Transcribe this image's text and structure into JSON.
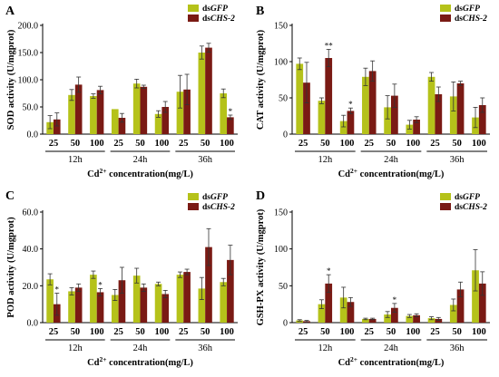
{
  "figure": {
    "x_unit_prefix": "Cd",
    "x_unit_sup": "2+",
    "x_unit_suffix": " concentration(mg/L)",
    "groups": [
      "12h",
      "24h",
      "36h"
    ]
  },
  "colors": {
    "dsGFP": "#b5c21a",
    "dsCHS2": "#7a1a14"
  },
  "chart_data": [
    {
      "panel": "A",
      "type": "bar",
      "ylabel": "SOD activity (U/mgprot)",
      "ylim": [
        0,
        200
      ],
      "ytick_step": 50,
      "ytick_decimals": 1,
      "categories": [
        "25",
        "50",
        "100",
        "25",
        "50",
        "100",
        "25",
        "50",
        "100"
      ],
      "groups": [
        "12h",
        "24h",
        "36h"
      ],
      "series": [
        {
          "name_prefix": "ds",
          "name_italic": "GFP",
          "values": [
            22,
            72,
            70,
            46,
            93,
            37,
            78,
            150,
            75
          ],
          "errors": [
            12,
            10,
            4,
            0,
            8,
            6,
            30,
            12,
            8
          ]
        },
        {
          "name_prefix": "ds",
          "name_italic": "CHS-2",
          "values": [
            27,
            91,
            81,
            30,
            87,
            50,
            82,
            159,
            31
          ],
          "errors": [
            12,
            14,
            7,
            8,
            3,
            10,
            28,
            8,
            4
          ]
        }
      ],
      "sig_marks": [
        {
          "series": 1,
          "index": 8,
          "text": "*"
        }
      ]
    },
    {
      "panel": "B",
      "type": "bar",
      "ylabel": "CAT activity (U/mgprot)",
      "ylim": [
        0,
        150
      ],
      "ytick_step": 50,
      "ytick_decimals": 0,
      "categories": [
        "25",
        "50",
        "100",
        "25",
        "50",
        "100",
        "25",
        "50",
        "100"
      ],
      "groups": [
        "12h",
        "24h",
        "36h"
      ],
      "series": [
        {
          "name_prefix": "ds",
          "name_italic": "GFP",
          "values": [
            97,
            46,
            18,
            79,
            37,
            13,
            79,
            52,
            23
          ],
          "errors": [
            8,
            4,
            8,
            12,
            16,
            6,
            6,
            20,
            14
          ]
        },
        {
          "name_prefix": "ds",
          "name_italic": "CHS-2",
          "values": [
            71,
            105,
            32,
            87,
            53,
            20,
            55,
            70,
            40
          ],
          "errors": [
            28,
            12,
            4,
            14,
            16,
            4,
            10,
            3,
            10
          ]
        }
      ],
      "sig_marks": [
        {
          "series": 1,
          "index": 1,
          "text": "**"
        },
        {
          "series": 1,
          "index": 2,
          "text": "*"
        }
      ]
    },
    {
      "panel": "C",
      "type": "bar",
      "ylabel": "POD activity (U/mgprot)",
      "ylim": [
        0,
        60
      ],
      "ytick_step": 20,
      "ytick_decimals": 1,
      "categories": [
        "25",
        "50",
        "100",
        "25",
        "50",
        "100",
        "25",
        "50",
        "100"
      ],
      "groups": [
        "12h",
        "24h",
        "36h"
      ],
      "series": [
        {
          "name_prefix": "ds",
          "name_italic": "GFP",
          "values": [
            23.5,
            17,
            26,
            15,
            25.5,
            21,
            26,
            18.5,
            22
          ],
          "errors": [
            3,
            2,
            2,
            3,
            4,
            1,
            1.5,
            6,
            2
          ]
        },
        {
          "name_prefix": "ds",
          "name_italic": "CHS-2",
          "values": [
            10,
            19,
            16.5,
            23,
            19,
            15.5,
            27.5,
            41,
            34
          ],
          "errors": [
            6,
            2,
            2,
            7,
            2,
            2,
            1.5,
            10,
            8
          ]
        }
      ],
      "sig_marks": [
        {
          "series": 1,
          "index": 0,
          "text": "*"
        },
        {
          "series": 1,
          "index": 2,
          "text": "*"
        }
      ]
    },
    {
      "panel": "D",
      "type": "bar",
      "ylabel": "GSH-PX activity (U/mgprot)",
      "ylim": [
        0,
        150
      ],
      "ytick_step": 50,
      "ytick_decimals": 0,
      "categories": [
        "25",
        "50",
        "100",
        "25",
        "50",
        "100",
        "25",
        "50",
        "100"
      ],
      "groups": [
        "12h",
        "24h",
        "36h"
      ],
      "series": [
        {
          "name_prefix": "ds",
          "name_italic": "GFP",
          "values": [
            3,
            25,
            34,
            5,
            11,
            9,
            6,
            24,
            71
          ],
          "errors": [
            1,
            6,
            14,
            1,
            4,
            2,
            2,
            8,
            28
          ]
        },
        {
          "name_prefix": "ds",
          "name_italic": "CHS-2",
          "values": [
            2,
            53,
            28,
            5,
            20,
            10,
            5,
            45,
            53
          ],
          "errors": [
            1,
            12,
            6,
            1,
            6,
            2,
            2,
            10,
            16
          ]
        }
      ],
      "sig_marks": [
        {
          "series": 1,
          "index": 1,
          "text": "*"
        },
        {
          "series": 1,
          "index": 4,
          "text": "*"
        }
      ]
    }
  ]
}
